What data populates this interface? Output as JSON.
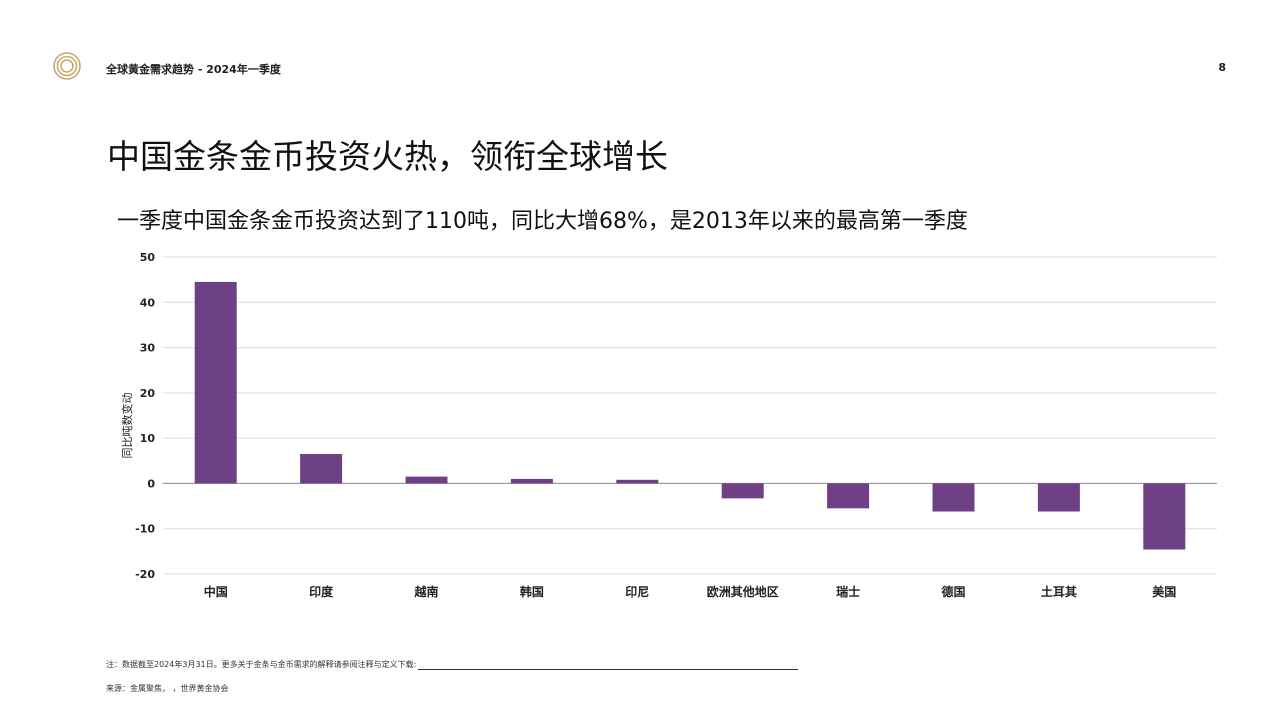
{
  "header": {
    "doc_title": "全球黄金需求趋势 - 2024年一季度",
    "page_number": "8"
  },
  "slide": {
    "title": "中国金条金币投资火热，领衔全球增长",
    "subtitle": "一季度中国金条金币投资达到了110吨，同比大增68%，是2013年以来的最高第一季度"
  },
  "chart_data": {
    "type": "bar",
    "categories": [
      "中国",
      "印度",
      "越南",
      "韩国",
      "印尼",
      "欧洲其他地区",
      "瑞士",
      "德国",
      "土耳其",
      "美国"
    ],
    "values": [
      44.5,
      6.5,
      1.5,
      1.0,
      0.8,
      -3.3,
      -5.5,
      -6.2,
      -6.2,
      -14.6
    ],
    "ylabel": "同比吨数变动",
    "ylim": [
      -20,
      50
    ],
    "yticks": [
      50,
      40,
      30,
      20,
      10,
      0,
      -10,
      -20
    ],
    "grid": true,
    "bar_color": "#6e4187"
  },
  "footer": {
    "note": "注：数据截至2024年3月31日。更多关于金条与金币需求的解释请参阅注释与定义下载:",
    "source": "来源：金属聚焦，            ，世界黄金协会"
  },
  "icons": {
    "logo": "concentric-rings-logo",
    "color": "#c8a96e"
  }
}
